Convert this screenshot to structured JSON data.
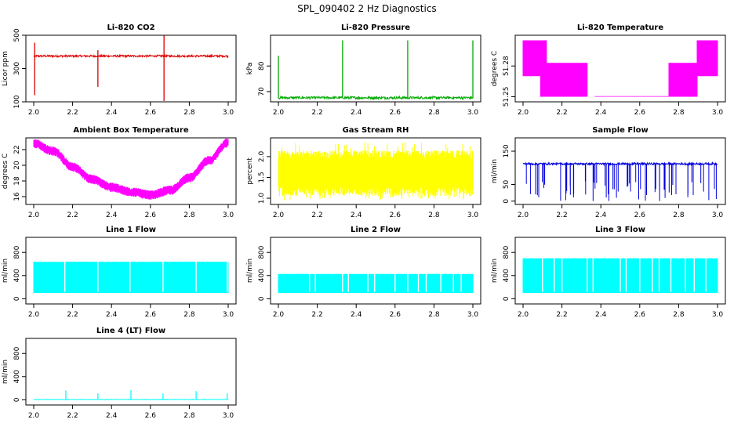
{
  "figure_title": "SPL_090402  2 Hz Diagnostics",
  "chart_data": [
    {
      "type": "line",
      "title": "Li-820 CO2",
      "ylabel": "Licor ppm",
      "xlabel": "",
      "color": "#dd0000",
      "xlim": [
        2.0,
        3.0
      ],
      "ylim": [
        100,
        500
      ],
      "x_ticks": [
        "2.0",
        "2.2",
        "2.4",
        "2.6",
        "2.8",
        "3.0"
      ],
      "y_ticks": [
        {
          "v": 100,
          "label": "100"
        },
        {
          "v": 300,
          "label": "300"
        },
        {
          "v": 500,
          "label": "500"
        }
      ],
      "series": [
        {
          "name": "CO2",
          "pattern": "noisy",
          "base": 375,
          "noise": 6,
          "spikes": [
            {
              "x": 2.005,
              "lo": 140,
              "hi": 455
            },
            {
              "x": 2.33,
              "lo": 190,
              "hi": 410
            },
            {
              "x": 2.67,
              "lo": 105,
              "hi": 500
            }
          ]
        }
      ]
    },
    {
      "type": "line",
      "title": "Li-820 Pressure",
      "ylabel": "kPa",
      "xlabel": "",
      "color": "#00aa00",
      "xlim": [
        2.0,
        3.0
      ],
      "ylim": [
        66,
        92
      ],
      "x_ticks": [
        "2.0",
        "2.2",
        "2.4",
        "2.6",
        "2.8",
        "3.0"
      ],
      "y_ticks": [
        {
          "v": 70,
          "label": "70"
        },
        {
          "v": 80,
          "label": "80"
        }
      ],
      "series": [
        {
          "name": "Pressure",
          "pattern": "noisy",
          "base": 67.6,
          "noise": 0.5,
          "spikes": [
            {
              "x": 2.0,
              "lo": 67.5,
              "hi": 84
            },
            {
              "x": 2.33,
              "lo": 67.5,
              "hi": 90
            },
            {
              "x": 2.665,
              "lo": 67.5,
              "hi": 90
            },
            {
              "x": 3.0,
              "lo": 67.5,
              "hi": 90
            }
          ]
        }
      ]
    },
    {
      "type": "line",
      "title": "Li-820 Temperature",
      "ylabel": "degrees C",
      "xlabel": "",
      "color": "#ff00ff",
      "xlim": [
        2.0,
        3.0
      ],
      "ylim": [
        51.245,
        51.31
      ],
      "x_ticks": [
        "2.0",
        "2.2",
        "2.4",
        "2.6",
        "2.8",
        "3.0"
      ],
      "y_ticks": [
        {
          "v": 51.25,
          "label": "51.25"
        },
        {
          "v": 51.28,
          "label": "51.28"
        }
      ],
      "series": [
        {
          "name": "Temperature",
          "pattern": "steps",
          "bands": [
            {
              "x0": 2.0,
              "x1": 2.12,
              "lo": 51.27,
              "hi": 51.305
            },
            {
              "x0": 2.09,
              "x1": 2.33,
              "lo": 51.25,
              "hi": 51.283
            },
            {
              "x0": 2.37,
              "x1": 2.75,
              "lo": 51.25,
              "hi": 51.2505
            },
            {
              "x0": 2.75,
              "x1": 2.895,
              "lo": 51.25,
              "hi": 51.283
            },
            {
              "x0": 2.895,
              "x1": 3.0,
              "lo": 51.27,
              "hi": 51.305
            }
          ]
        }
      ]
    },
    {
      "type": "line",
      "title": "Ambient Box Temperature",
      "ylabel": "degrees C",
      "xlabel": "",
      "color": "#ff00ff",
      "xlim": [
        2.0,
        3.0
      ],
      "ylim": [
        15.0,
        23.5
      ],
      "x_ticks": [
        "2.0",
        "2.2",
        "2.4",
        "2.6",
        "2.8",
        "3.0"
      ],
      "y_ticks": [
        {
          "v": 16,
          "label": "16"
        },
        {
          "v": 18,
          "label": "18"
        },
        {
          "v": 20,
          "label": "20"
        },
        {
          "v": 22,
          "label": "22"
        }
      ],
      "series": [
        {
          "name": "Ambient",
          "pattern": "curve",
          "noise": 0.4,
          "points": [
            [
              2.0,
              22.8
            ],
            [
              2.1,
              21.8
            ],
            [
              2.2,
              19.8
            ],
            [
              2.3,
              18.2
            ],
            [
              2.4,
              17.2
            ],
            [
              2.5,
              16.6
            ],
            [
              2.6,
              16.2
            ],
            [
              2.7,
              16.8
            ],
            [
              2.8,
              18.4
            ],
            [
              2.9,
              20.6
            ],
            [
              3.0,
              22.9
            ]
          ]
        }
      ]
    },
    {
      "type": "line",
      "title": "Gas Stream RH",
      "ylabel": "percent",
      "xlabel": "",
      "color": "#ffff00",
      "xlim": [
        2.0,
        3.0
      ],
      "ylim": [
        0.85,
        2.45
      ],
      "x_ticks": [
        "2.0",
        "2.2",
        "2.4",
        "2.6",
        "2.8",
        "3.0"
      ],
      "y_ticks": [
        {
          "v": 1.0,
          "label": "1.0"
        },
        {
          "v": 1.5,
          "label": "1.5"
        },
        {
          "v": 2.0,
          "label": "2.0"
        }
      ],
      "series": [
        {
          "name": "RH",
          "pattern": "band",
          "lo": 1.05,
          "hi": 2.15,
          "extra_lo": 0.95,
          "extra_hi": 2.35
        }
      ]
    },
    {
      "type": "line",
      "title": "Sample Flow",
      "ylabel": "ml/min",
      "xlabel": "",
      "color": "#0000dd",
      "xlim": [
        2.0,
        3.0
      ],
      "ylim": [
        -10,
        190
      ],
      "x_ticks": [
        "2.0",
        "2.2",
        "2.4",
        "2.6",
        "2.8",
        "3.0"
      ],
      "y_ticks": [
        {
          "v": 0,
          "label": "0"
        },
        {
          "v": 50,
          "label": "50"
        },
        {
          "v": 150,
          "label": "150"
        }
      ],
      "series": [
        {
          "name": "Sample",
          "pattern": "flowdips",
          "base": 112,
          "noise": 3,
          "dip_lo": 0,
          "dips": 60
        }
      ]
    },
    {
      "type": "line",
      "title": "Line 1 Flow",
      "ylabel": "ml/min",
      "xlabel": "",
      "color": "#00ffff",
      "xlim": [
        2.0,
        3.0
      ],
      "ylim": [
        -90,
        1060
      ],
      "x_ticks": [
        "2.0",
        "2.2",
        "2.4",
        "2.6",
        "2.8",
        "3.0"
      ],
      "y_ticks": [
        {
          "v": 0,
          "label": "0"
        },
        {
          "v": 400,
          "label": "400"
        },
        {
          "v": 800,
          "label": "800"
        }
      ],
      "series": [
        {
          "name": "Line 1",
          "pattern": "cyan",
          "lo": 100,
          "hi": 640,
          "gaps": [
            2.16,
            2.33,
            2.495,
            2.665,
            2.835,
            2.995
          ]
        }
      ]
    },
    {
      "type": "line",
      "title": "Line 2 Flow",
      "ylabel": "ml/min",
      "xlabel": "",
      "color": "#00ffff",
      "xlim": [
        2.0,
        3.0
      ],
      "ylim": [
        -90,
        1060
      ],
      "x_ticks": [
        "2.0",
        "2.2",
        "2.4",
        "2.6",
        "2.8",
        "3.0"
      ],
      "y_ticks": [
        {
          "v": 0,
          "label": "0"
        },
        {
          "v": 400,
          "label": "400"
        },
        {
          "v": 800,
          "label": "800"
        }
      ],
      "series": [
        {
          "name": "Line 2",
          "pattern": "cyan",
          "lo": 100,
          "hi": 430,
          "gaps": [
            2.16,
            2.19,
            2.33,
            2.36,
            2.46,
            2.495,
            2.6,
            2.665,
            2.72,
            2.76,
            2.835,
            2.9,
            2.94
          ]
        }
      ]
    },
    {
      "type": "line",
      "title": "Line 3 Flow",
      "ylabel": "ml/min",
      "xlabel": "",
      "color": "#00ffff",
      "xlim": [
        2.0,
        3.0
      ],
      "ylim": [
        -90,
        1060
      ],
      "x_ticks": [
        "2.0",
        "2.2",
        "2.4",
        "2.6",
        "2.8",
        "3.0"
      ],
      "y_ticks": [
        {
          "v": 0,
          "label": "0"
        },
        {
          "v": 400,
          "label": "400"
        },
        {
          "v": 800,
          "label": "800"
        }
      ],
      "series": [
        {
          "name": "Line 3",
          "pattern": "cyan",
          "lo": 100,
          "hi": 700,
          "gaps": [
            2.1,
            2.16,
            2.2,
            2.33,
            2.36,
            2.5,
            2.53,
            2.6,
            2.665,
            2.7,
            2.76,
            2.835,
            2.88,
            2.94
          ]
        }
      ]
    },
    {
      "type": "line",
      "title": "Line 4 (LT) Flow",
      "ylabel": "ml/min",
      "xlabel": "",
      "color": "#00ffff",
      "xlim": [
        2.0,
        3.0
      ],
      "ylim": [
        -90,
        1060
      ],
      "x_ticks": [
        "2.0",
        "2.2",
        "2.4",
        "2.6",
        "2.8",
        "3.0"
      ],
      "y_ticks": [
        {
          "v": 0,
          "label": "0"
        },
        {
          "v": 400,
          "label": "400"
        },
        {
          "v": 800,
          "label": "800"
        }
      ],
      "series": [
        {
          "name": "Line 4 (LT)",
          "pattern": "noisy",
          "base": 5,
          "noise": 4,
          "spikes": [
            {
              "x": 2.165,
              "lo": 0,
              "hi": 160
            },
            {
              "x": 2.33,
              "lo": 0,
              "hi": 110
            },
            {
              "x": 2.5,
              "lo": 0,
              "hi": 165
            },
            {
              "x": 2.665,
              "lo": 0,
              "hi": 110
            },
            {
              "x": 2.835,
              "lo": 0,
              "hi": 150
            },
            {
              "x": 2.995,
              "lo": 0,
              "hi": 110
            }
          ]
        }
      ]
    }
  ]
}
